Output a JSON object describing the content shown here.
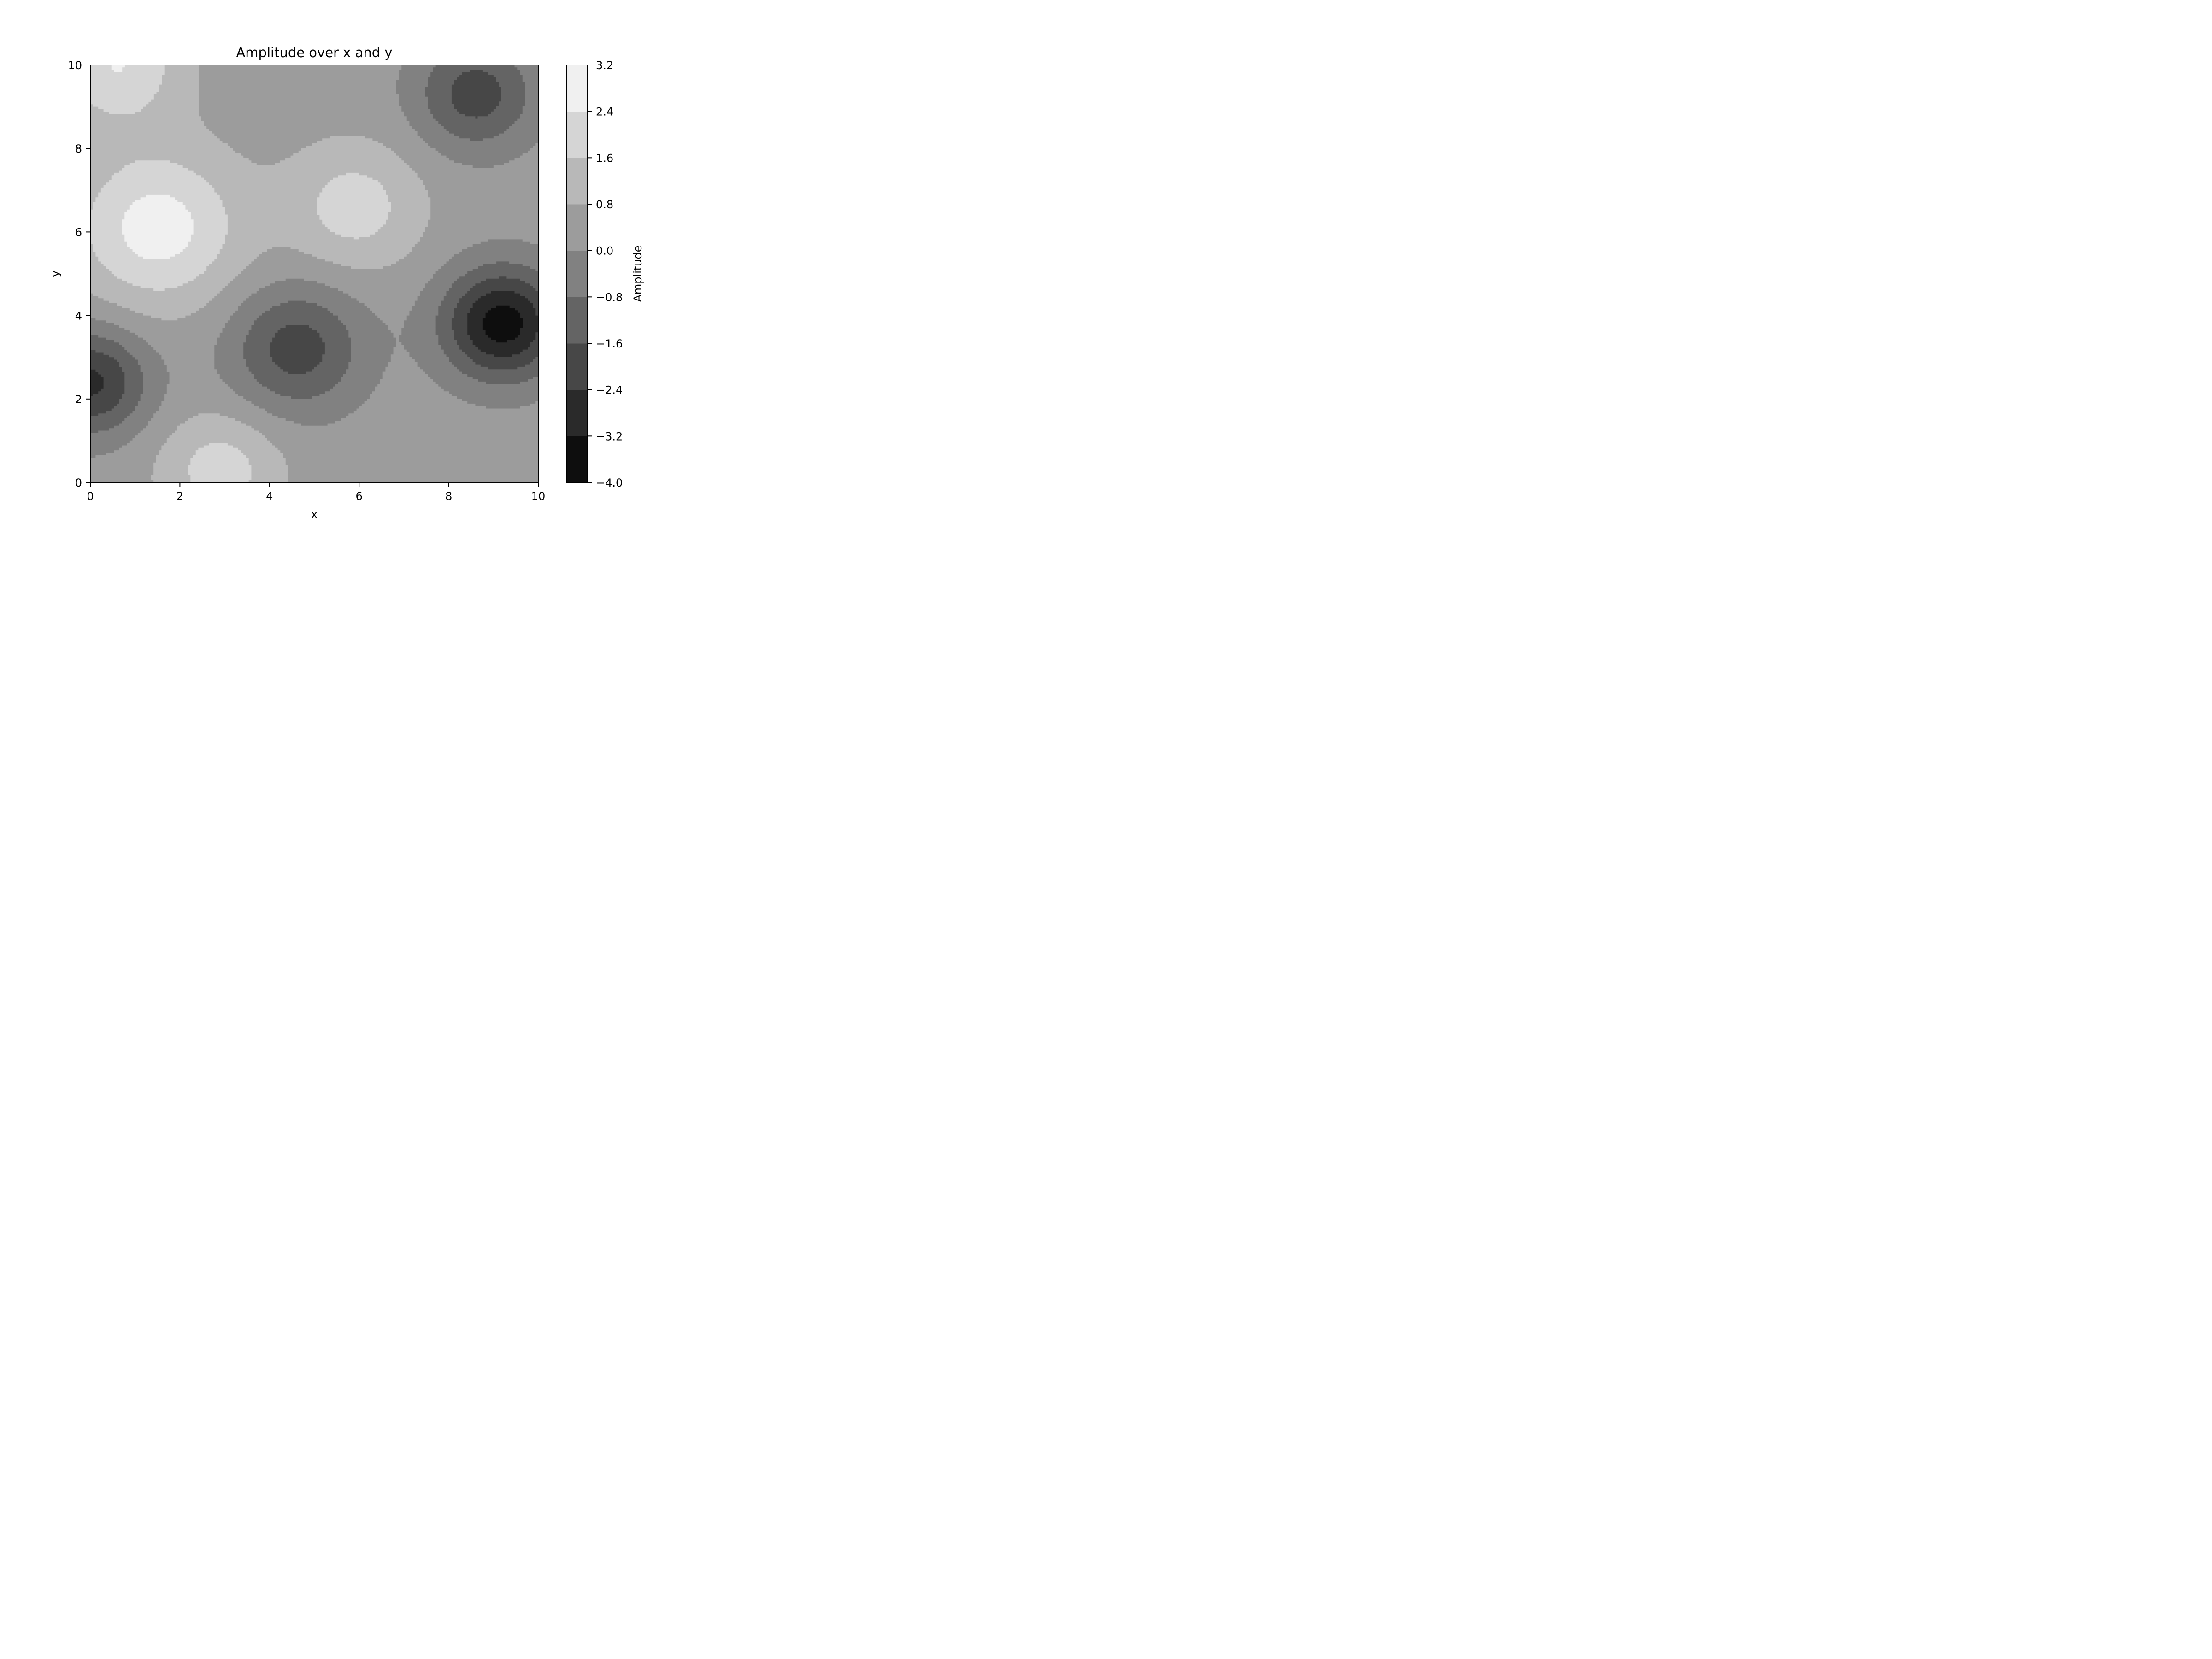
{
  "chart_data": {
    "type": "contourf",
    "title": "Amplitude over x and y",
    "xlabel": "x",
    "ylabel": "y",
    "xlim": [
      0,
      10
    ],
    "ylim": [
      0,
      10
    ],
    "x_ticks": [
      "0",
      "2",
      "4",
      "6",
      "8",
      "10"
    ],
    "y_ticks": [
      "0",
      "2",
      "4",
      "6",
      "8",
      "10"
    ],
    "grid": false,
    "colormap": "gray",
    "levels": [
      -4.0,
      -3.2,
      -2.4,
      -1.6,
      -0.8,
      0.0,
      0.8,
      1.6,
      2.4,
      3.2
    ],
    "level_labels": [
      "−4.0",
      "−3.2",
      "−2.4",
      "−1.6",
      "−0.8",
      "0.0",
      "0.8",
      "1.6",
      "2.4",
      "3.2"
    ],
    "level_colors": [
      "#0e0e0e",
      "#2a2a2a",
      "#474747",
      "#646464",
      "#818181",
      "#9c9c9c",
      "#b8b8b8",
      "#d5d5d5",
      "#f0f0f0"
    ],
    "colorbar_label": "Amplitude",
    "features": [
      {
        "type": "minimum",
        "x": 9.2,
        "y": 3.8,
        "value": -3.6
      },
      {
        "type": "minimum",
        "x": 4.6,
        "y": 3.2,
        "value": -2.0
      },
      {
        "type": "minimum",
        "x": 8.6,
        "y": 9.3,
        "value": -2.0
      },
      {
        "type": "minimum",
        "x": 0.0,
        "y": 2.4,
        "value": -2.6
      },
      {
        "type": "maximum",
        "x": 1.5,
        "y": 6.1,
        "value": 2.8
      },
      {
        "type": "maximum",
        "x": 5.9,
        "y": 6.6,
        "value": 2.0
      },
      {
        "type": "maximum",
        "x": 2.9,
        "y": 0.3,
        "value": 2.0
      },
      {
        "type": "maximum",
        "x": 0.6,
        "y": 10.0,
        "value": 2.4
      }
    ]
  }
}
